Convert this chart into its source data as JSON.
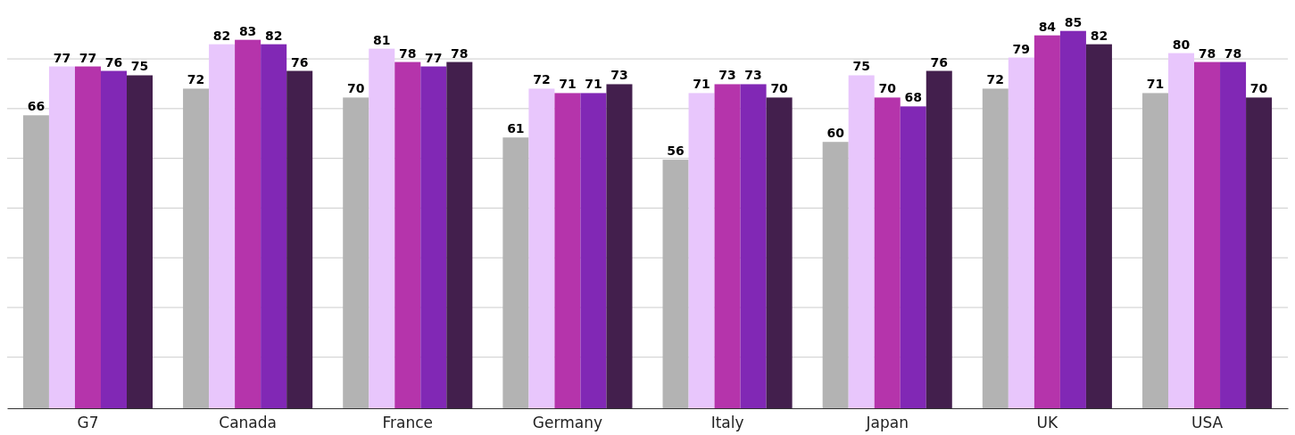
{
  "chart_data": {
    "type": "bar",
    "categories": [
      "G7",
      "Canada",
      "France",
      "Germany",
      "Italy",
      "Japan",
      "UK",
      "USA"
    ],
    "series": [
      {
        "color": "#b3b3b3",
        "values": [
          66,
          72,
          70,
          61,
          56,
          60,
          72,
          71
        ]
      },
      {
        "color": "#e8c6fc",
        "values": [
          77,
          82,
          81,
          72,
          71,
          75,
          79,
          80
        ]
      },
      {
        "color": "#b534ab",
        "values": [
          77,
          83,
          78,
          71,
          73,
          70,
          84,
          78
        ]
      },
      {
        "color": "#8128b5",
        "values": [
          76,
          82,
          77,
          71,
          73,
          68,
          85,
          78
        ]
      },
      {
        "color": "#431f4d",
        "values": [
          75,
          76,
          78,
          73,
          70,
          76,
          82,
          70
        ]
      }
    ],
    "yticks": [
      {
        "value": 11.5,
        "label": null
      },
      {
        "value": 22.7,
        "label": null
      },
      {
        "value": 33.9,
        "label": null
      },
      {
        "value": 45.1,
        "label": null
      },
      {
        "value": 56.3,
        "label": null
      },
      {
        "value": 67.5,
        "label": null
      },
      {
        "value": 78.7,
        "label": null
      }
    ],
    "grid": "y",
    "tick_labels": "x",
    "data_labels": true
  }
}
